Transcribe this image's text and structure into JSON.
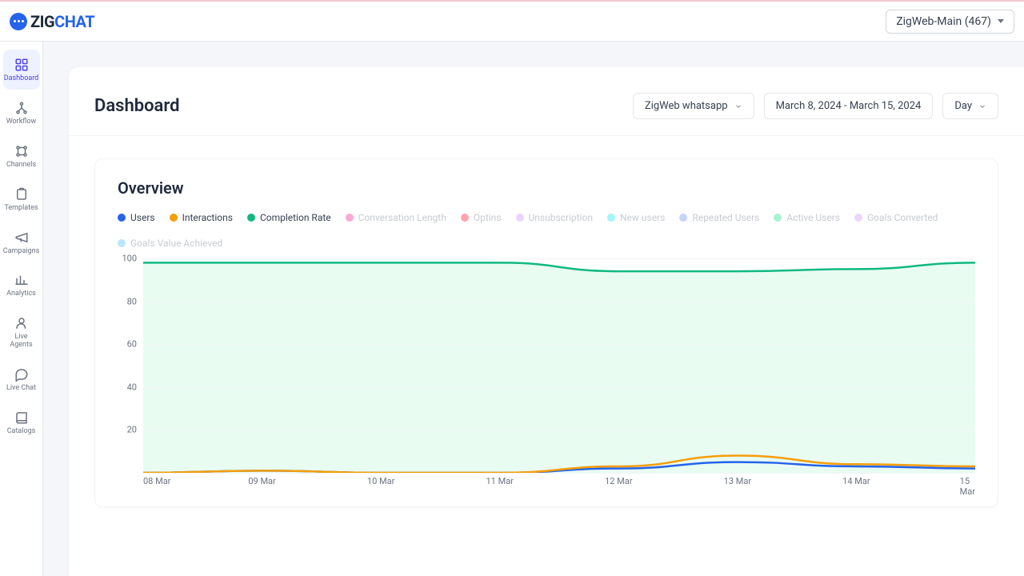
{
  "brand": {
    "prefix": "ZIG",
    "suffix": "CHAT"
  },
  "account_selector": {
    "label": "ZigWeb-Main (467)"
  },
  "sidebar": {
    "items": [
      {
        "key": "dashboard",
        "label": "Dashboard",
        "active": true
      },
      {
        "key": "workflow",
        "label": "Workflow"
      },
      {
        "key": "channels",
        "label": "Channels"
      },
      {
        "key": "templates",
        "label": "Templates"
      },
      {
        "key": "campaigns",
        "label": "Campaigns"
      },
      {
        "key": "analytics",
        "label": "Analytics"
      },
      {
        "key": "liveagents",
        "label": "Live Agents"
      },
      {
        "key": "livechat",
        "label": "Live Chat"
      },
      {
        "key": "catalogs",
        "label": "Catalogs"
      }
    ]
  },
  "page": {
    "title": "Dashboard"
  },
  "filters": {
    "channel": "ZigWeb whatsapp",
    "daterange": "March 8, 2024 - March 15, 2024",
    "granularity": "Day"
  },
  "overview_chart": {
    "title": "Overview",
    "type": "line-area",
    "x_categories": [
      "08 Mar",
      "09 Mar",
      "10 Mar",
      "11 Mar",
      "12 Mar",
      "13 Mar",
      "14 Mar",
      "15 Mar"
    ],
    "ylim": [
      0,
      100
    ],
    "ytick_step": 20,
    "grid_color": "#f3f4f6",
    "background_color": "#ffffff",
    "label_fontsize": 11,
    "axis_color": "#6b7280",
    "series": [
      {
        "key": "users",
        "label": "Users",
        "color": "#2563eb",
        "active": true,
        "fill": false,
        "values": [
          0,
          1,
          0,
          0,
          2,
          5,
          3,
          2
        ]
      },
      {
        "key": "interactions",
        "label": "Interactions",
        "color": "#f59e0b",
        "active": true,
        "fill": false,
        "values": [
          0,
          1,
          0,
          0,
          3,
          8,
          4,
          3
        ]
      },
      {
        "key": "completion_rate",
        "label": "Completion Rate",
        "color": "#10b981",
        "active": true,
        "fill": true,
        "fill_color": "#d1fae5",
        "values": [
          98,
          98,
          98,
          98,
          94,
          94,
          95,
          98
        ]
      },
      {
        "key": "conversation_length",
        "label": "Conversation Length",
        "color": "#f9a8d4",
        "active": false
      },
      {
        "key": "optins",
        "label": "Optins",
        "color": "#fda4af",
        "active": false
      },
      {
        "key": "unsubscription",
        "label": "Unsubscription",
        "color": "#e9d5ff",
        "active": false
      },
      {
        "key": "new_users",
        "label": "New users",
        "color": "#a5f3fc",
        "active": false
      },
      {
        "key": "repeated_users",
        "label": "Repeated Users",
        "color": "#c7d2fe",
        "active": false
      },
      {
        "key": "active_users",
        "label": "Active Users",
        "color": "#a7f3d0",
        "active": false
      },
      {
        "key": "goals_converted",
        "label": "Goals Converted",
        "color": "#e9d5ff",
        "active": false
      },
      {
        "key": "goals_value_achieved",
        "label": "Goals Value Achieved",
        "color": "#bae6fd",
        "active": false
      }
    ],
    "line_width": 2.5
  }
}
